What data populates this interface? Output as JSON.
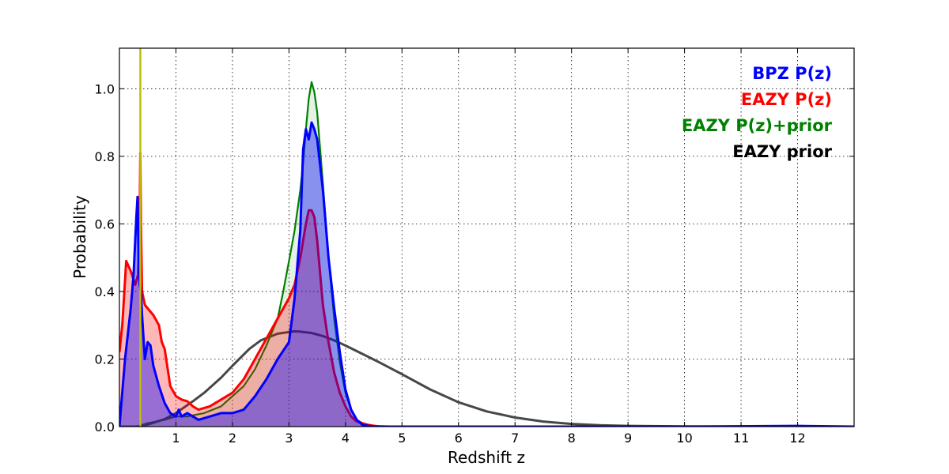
{
  "chart_data": {
    "type": "area",
    "xlabel": "Redshift z",
    "ylabel": "Probability",
    "xlim": [
      0,
      13
    ],
    "ylim": [
      0,
      1.12
    ],
    "grid": true,
    "grid_style": "dotted",
    "legend_position": "top-right",
    "x_ticks": [
      1,
      2,
      3,
      4,
      5,
      6,
      7,
      8,
      9,
      10,
      11,
      12
    ],
    "x_tick_labels": [
      "1",
      "2",
      "3",
      "4",
      "5",
      "6",
      "7",
      "8",
      "9",
      "10",
      "11",
      "12"
    ],
    "y_ticks": [
      0.0,
      0.2,
      0.4,
      0.6,
      0.8,
      1.0
    ],
    "y_tick_labels": [
      "0.0",
      "0.2",
      "0.4",
      "0.6",
      "0.8",
      "1.0"
    ],
    "vertical_line": {
      "x": 0.37,
      "color": "#bfbf00"
    },
    "series": [
      {
        "name": "EAZY prior",
        "color": "#333333",
        "fill": false,
        "x": [
          0,
          0.3,
          0.5,
          0.8,
          1.0,
          1.3,
          1.5,
          1.8,
          2.0,
          2.3,
          2.5,
          2.8,
          3.0,
          3.1,
          3.2,
          3.4,
          3.6,
          3.8,
          4.0,
          4.3,
          4.6,
          5.0,
          5.5,
          6.0,
          6.5,
          7.0,
          7.5,
          8.0,
          8.5,
          9.0,
          10.0,
          11.0,
          12.0,
          13.0
        ],
        "y": [
          0.0,
          0.0,
          0.006,
          0.022,
          0.04,
          0.075,
          0.1,
          0.145,
          0.18,
          0.23,
          0.255,
          0.275,
          0.28,
          0.282,
          0.281,
          0.277,
          0.268,
          0.255,
          0.24,
          0.215,
          0.19,
          0.155,
          0.11,
          0.072,
          0.045,
          0.027,
          0.015,
          0.008,
          0.004,
          0.002,
          0.0005,
          0.0001,
          0.0,
          0.0
        ]
      },
      {
        "name": "EAZY P(z)+prior",
        "color": "#008000",
        "fill": true,
        "fill_color": "#008000",
        "fill_opacity": 0.1,
        "x": [
          0,
          0.3,
          0.5,
          0.8,
          1.0,
          1.2,
          1.5,
          1.8,
          2.0,
          2.2,
          2.4,
          2.6,
          2.8,
          2.9,
          3.0,
          3.1,
          3.2,
          3.25,
          3.3,
          3.35,
          3.4,
          3.45,
          3.5,
          3.6,
          3.7,
          3.8,
          3.9,
          4.0,
          4.1,
          4.2,
          4.3,
          4.5,
          5.0,
          6.0,
          13.0
        ],
        "y": [
          0.0,
          0.0,
          0.01,
          0.02,
          0.03,
          0.03,
          0.04,
          0.06,
          0.09,
          0.12,
          0.17,
          0.24,
          0.32,
          0.4,
          0.49,
          0.58,
          0.7,
          0.78,
          0.88,
          0.97,
          1.02,
          0.99,
          0.93,
          0.72,
          0.5,
          0.32,
          0.19,
          0.1,
          0.05,
          0.02,
          0.01,
          0.002,
          0.0,
          0.0,
          0.0
        ]
      },
      {
        "name": "EAZY P(z)",
        "color": "#ff0000",
        "fill": true,
        "fill_color": "#ff0000",
        "fill_opacity": 0.28,
        "x": [
          0,
          0.05,
          0.12,
          0.2,
          0.28,
          0.33,
          0.36,
          0.37,
          0.38,
          0.4,
          0.45,
          0.5,
          0.6,
          0.7,
          0.75,
          0.8,
          0.9,
          1.0,
          1.1,
          1.2,
          1.3,
          1.4,
          1.6,
          1.8,
          2.0,
          2.2,
          2.4,
          2.6,
          2.8,
          3.0,
          3.1,
          3.2,
          3.3,
          3.35,
          3.4,
          3.45,
          3.5,
          3.6,
          3.7,
          3.8,
          3.9,
          4.0,
          4.1,
          4.2,
          4.4,
          4.6,
          5.0,
          13.0
        ],
        "y": [
          0.22,
          0.3,
          0.49,
          0.46,
          0.42,
          0.45,
          0.62,
          0.81,
          0.6,
          0.4,
          0.36,
          0.35,
          0.33,
          0.3,
          0.25,
          0.23,
          0.12,
          0.09,
          0.08,
          0.075,
          0.06,
          0.05,
          0.06,
          0.08,
          0.1,
          0.14,
          0.2,
          0.26,
          0.32,
          0.38,
          0.42,
          0.5,
          0.6,
          0.64,
          0.64,
          0.62,
          0.55,
          0.36,
          0.25,
          0.16,
          0.1,
          0.06,
          0.03,
          0.015,
          0.005,
          0.0,
          0.0,
          0.0
        ]
      },
      {
        "name": "BPZ P(z)",
        "color": "#0000ff",
        "fill": true,
        "fill_color": "#0000ff",
        "fill_opacity": 0.4,
        "x": [
          0,
          0.1,
          0.2,
          0.25,
          0.3,
          0.32,
          0.34,
          0.36,
          0.38,
          0.4,
          0.45,
          0.5,
          0.55,
          0.6,
          0.7,
          0.8,
          0.9,
          1.0,
          1.05,
          1.1,
          1.2,
          1.3,
          1.4,
          1.6,
          1.8,
          2.0,
          2.2,
          2.4,
          2.6,
          2.8,
          3.0,
          3.1,
          3.2,
          3.25,
          3.3,
          3.35,
          3.4,
          3.45,
          3.5,
          3.6,
          3.7,
          3.8,
          3.9,
          4.0,
          4.1,
          4.2,
          4.3,
          4.5,
          5.0,
          10.0,
          12.0,
          13.0
        ],
        "y": [
          0.0,
          0.2,
          0.35,
          0.45,
          0.62,
          0.68,
          0.5,
          0.42,
          0.4,
          0.33,
          0.2,
          0.25,
          0.24,
          0.18,
          0.12,
          0.07,
          0.04,
          0.03,
          0.05,
          0.03,
          0.04,
          0.03,
          0.02,
          0.03,
          0.04,
          0.04,
          0.05,
          0.09,
          0.14,
          0.2,
          0.25,
          0.38,
          0.58,
          0.82,
          0.88,
          0.85,
          0.9,
          0.88,
          0.85,
          0.7,
          0.5,
          0.35,
          0.22,
          0.11,
          0.05,
          0.02,
          0.005,
          0.0,
          0.0,
          0.0,
          0.002,
          0.0
        ]
      }
    ],
    "legend": [
      {
        "label": "BPZ P(z)",
        "color": "#0000ff"
      },
      {
        "label": "EAZY P(z)",
        "color": "#ff0000"
      },
      {
        "label": "EAZY P(z)+prior",
        "color": "#008000"
      },
      {
        "label": "EAZY prior",
        "color": "#000000"
      }
    ]
  }
}
